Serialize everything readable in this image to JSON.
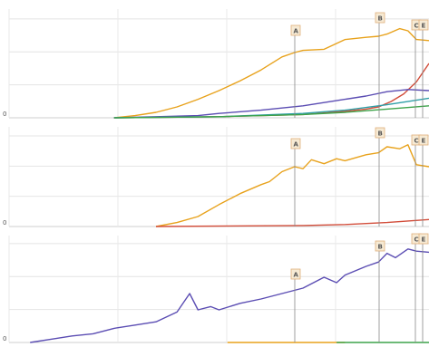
{
  "colors": {
    "orange": "#e8a21c",
    "red": "#d24d3a",
    "purple": "#5b4db3",
    "green": "#3da34a",
    "teal": "#2e9fa7",
    "marker_fill": "#f6ead4",
    "marker_border": "#e0b07a"
  },
  "chart_data": [
    {
      "type": "line",
      "y_tick_label": "0",
      "grid": true,
      "markers": [
        "A",
        "B",
        "C",
        "E"
      ],
      "series": [
        {
          "color_key": "orange",
          "x": [
            0.25,
            0.3,
            0.35,
            0.4,
            0.45,
            0.5,
            0.55,
            0.6,
            0.65,
            0.68,
            0.7,
            0.75,
            0.8,
            0.85,
            0.88,
            0.9,
            0.93,
            0.95,
            0.97,
            1.0
          ],
          "y": [
            0.0,
            0.02,
            0.05,
            0.1,
            0.17,
            0.25,
            0.34,
            0.44,
            0.56,
            0.6,
            0.62,
            0.63,
            0.72,
            0.74,
            0.75,
            0.77,
            0.82,
            0.8,
            0.72,
            0.71
          ]
        },
        {
          "color_key": "red",
          "x": [
            0.25,
            0.5,
            0.7,
            0.8,
            0.85,
            0.88,
            0.91,
            0.94,
            0.97,
            1.0
          ],
          "y": [
            0.0,
            0.01,
            0.03,
            0.06,
            0.08,
            0.1,
            0.15,
            0.22,
            0.33,
            0.5
          ]
        },
        {
          "color_key": "purple",
          "x": [
            0.25,
            0.35,
            0.45,
            0.5,
            0.6,
            0.7,
            0.8,
            0.85,
            0.9,
            0.95,
            1.0
          ],
          "y": [
            0.0,
            0.01,
            0.02,
            0.04,
            0.07,
            0.11,
            0.17,
            0.2,
            0.24,
            0.26,
            0.25
          ]
        },
        {
          "color_key": "teal",
          "x": [
            0.25,
            0.5,
            0.7,
            0.8,
            0.9,
            1.0
          ],
          "y": [
            0.0,
            0.01,
            0.04,
            0.07,
            0.12,
            0.18
          ]
        },
        {
          "color_key": "green",
          "x": [
            0.25,
            0.5,
            0.7,
            0.8,
            0.9,
            1.0
          ],
          "y": [
            0.0,
            0.01,
            0.03,
            0.05,
            0.08,
            0.11
          ]
        }
      ]
    },
    {
      "type": "line",
      "y_tick_label": "0",
      "grid": true,
      "markers": [
        "A",
        "B",
        "C",
        "E"
      ],
      "series": [
        {
          "color_key": "orange",
          "x": [
            0.35,
            0.4,
            0.45,
            0.5,
            0.55,
            0.6,
            0.62,
            0.65,
            0.68,
            0.7,
            0.72,
            0.75,
            0.78,
            0.8,
            0.85,
            0.88,
            0.9,
            0.93,
            0.95,
            0.97,
            1.0
          ],
          "y": [
            0.0,
            0.04,
            0.1,
            0.22,
            0.33,
            0.42,
            0.45,
            0.55,
            0.6,
            0.58,
            0.67,
            0.63,
            0.68,
            0.66,
            0.72,
            0.74,
            0.8,
            0.78,
            0.82,
            0.62,
            0.6
          ]
        },
        {
          "color_key": "red",
          "x": [
            0.35,
            0.7,
            0.8,
            0.9,
            1.0
          ],
          "y": [
            0.0,
            0.01,
            0.02,
            0.04,
            0.07
          ]
        }
      ]
    },
    {
      "type": "line",
      "y_tick_label": "0",
      "grid": true,
      "markers": [
        "A",
        "B",
        "C",
        "E"
      ],
      "series": [
        {
          "color_key": "purple",
          "x": [
            0.05,
            0.1,
            0.15,
            0.2,
            0.25,
            0.3,
            0.35,
            0.4,
            0.43,
            0.45,
            0.48,
            0.5,
            0.55,
            0.6,
            0.65,
            0.7,
            0.75,
            0.78,
            0.8,
            0.85,
            0.88,
            0.9,
            0.92,
            0.95,
            0.97,
            1.0
          ],
          "y": [
            0.0,
            0.03,
            0.06,
            0.08,
            0.13,
            0.16,
            0.19,
            0.28,
            0.45,
            0.3,
            0.33,
            0.3,
            0.36,
            0.4,
            0.45,
            0.5,
            0.6,
            0.55,
            0.62,
            0.7,
            0.74,
            0.82,
            0.78,
            0.86,
            0.84,
            0.83
          ]
        },
        {
          "color_key": "orange",
          "x": [
            0.52,
            0.8
          ],
          "y": [
            0.0,
            0.0
          ]
        },
        {
          "color_key": "green",
          "x": [
            0.78,
            1.0
          ],
          "y": [
            0.0,
            0.0
          ]
        }
      ]
    }
  ]
}
